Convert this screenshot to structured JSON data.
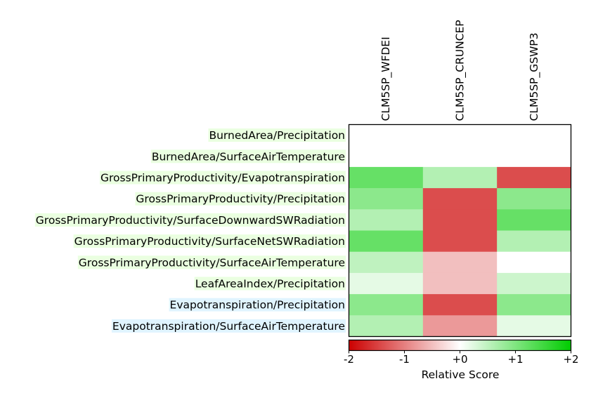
{
  "chart_data": {
    "type": "heatmap",
    "columns": [
      "CLM5SP_WFDEI",
      "CLM5SP_CRUNCEP",
      "CLM5SP_GSWP3"
    ],
    "rows": [
      {
        "label": "BurnedArea/Precipitation",
        "highlight": "#eaffe0",
        "values": [
          null,
          null,
          null
        ]
      },
      {
        "label": "BurnedArea/SurfaceAirTemperature",
        "highlight": "#eaffe0",
        "values": [
          null,
          null,
          null
        ]
      },
      {
        "label": "GrossPrimaryProductivity/Evapotranspiration",
        "highlight": "#eaffe0",
        "values": [
          1.2,
          0.6,
          -1.4
        ]
      },
      {
        "label": "GrossPrimaryProductivity/Precipitation",
        "highlight": "#eaffe0",
        "values": [
          0.9,
          -1.4,
          0.9
        ]
      },
      {
        "label": "GrossPrimaryProductivity/SurfaceDownwardSWRadiation",
        "highlight": "#eaffe0",
        "values": [
          0.6,
          -1.4,
          1.2
        ]
      },
      {
        "label": "GrossPrimaryProductivity/SurfaceNetSWRadiation",
        "highlight": "#eaffe0",
        "values": [
          1.2,
          -1.4,
          0.6
        ]
      },
      {
        "label": "GrossPrimaryProductivity/SurfaceAirTemperature",
        "highlight": "#eaffe0",
        "values": [
          0.5,
          -0.5,
          0.0
        ]
      },
      {
        "label": "LeafAreaIndex/Precipitation",
        "highlight": "#eaffe0",
        "values": [
          0.2,
          -0.5,
          0.4
        ]
      },
      {
        "label": "Evapotranspiration/Precipitation",
        "highlight": "#e0f4ff",
        "values": [
          0.9,
          -1.4,
          0.9
        ]
      },
      {
        "label": "Evapotranspiration/SurfaceAirTemperature",
        "highlight": "#e0f4ff",
        "values": [
          0.6,
          -0.8,
          0.2
        ]
      }
    ],
    "colorbar": {
      "label": "Relative Score",
      "range": [
        -2,
        2
      ],
      "ticks": [
        -2,
        -1,
        0,
        1,
        2
      ],
      "tick_labels": [
        "-2",
        "-1",
        "+0",
        "+1",
        "+2"
      ],
      "low_color": "#cc0000",
      "mid_color": "#ffffff",
      "high_color": "#00cc00"
    }
  }
}
